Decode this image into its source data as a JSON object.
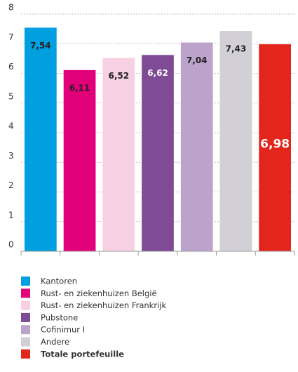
{
  "chart_data": {
    "type": "bar",
    "categories": [
      "Kantoren",
      "Rust- en ziekenhuizen België",
      "Rust- en ziekenhuizen Frankrijk",
      "Pubstone",
      "Cofinimur I",
      "Andere",
      "Totale portefeuille"
    ],
    "values": [
      7.54,
      6.11,
      6.52,
      6.62,
      7.04,
      7.43,
      6.98
    ],
    "value_labels": [
      "7,54",
      "6,11",
      "6,52",
      "6,62",
      "7,04",
      "7,43",
      "6,98"
    ],
    "colors": [
      "#009fe0",
      "#e2007a",
      "#f7d0e3",
      "#7f4b96",
      "#bca3cc",
      "#d2d0d6",
      "#e3251c"
    ],
    "label_colors": [
      "#222222",
      "#222222",
      "#222222",
      "#ffffff",
      "#222222",
      "#222222",
      "#ffffff"
    ],
    "ylim": [
      0,
      8
    ],
    "yticks": [
      0,
      1,
      2,
      3,
      4,
      5,
      6,
      7,
      8
    ],
    "grid": true
  }
}
